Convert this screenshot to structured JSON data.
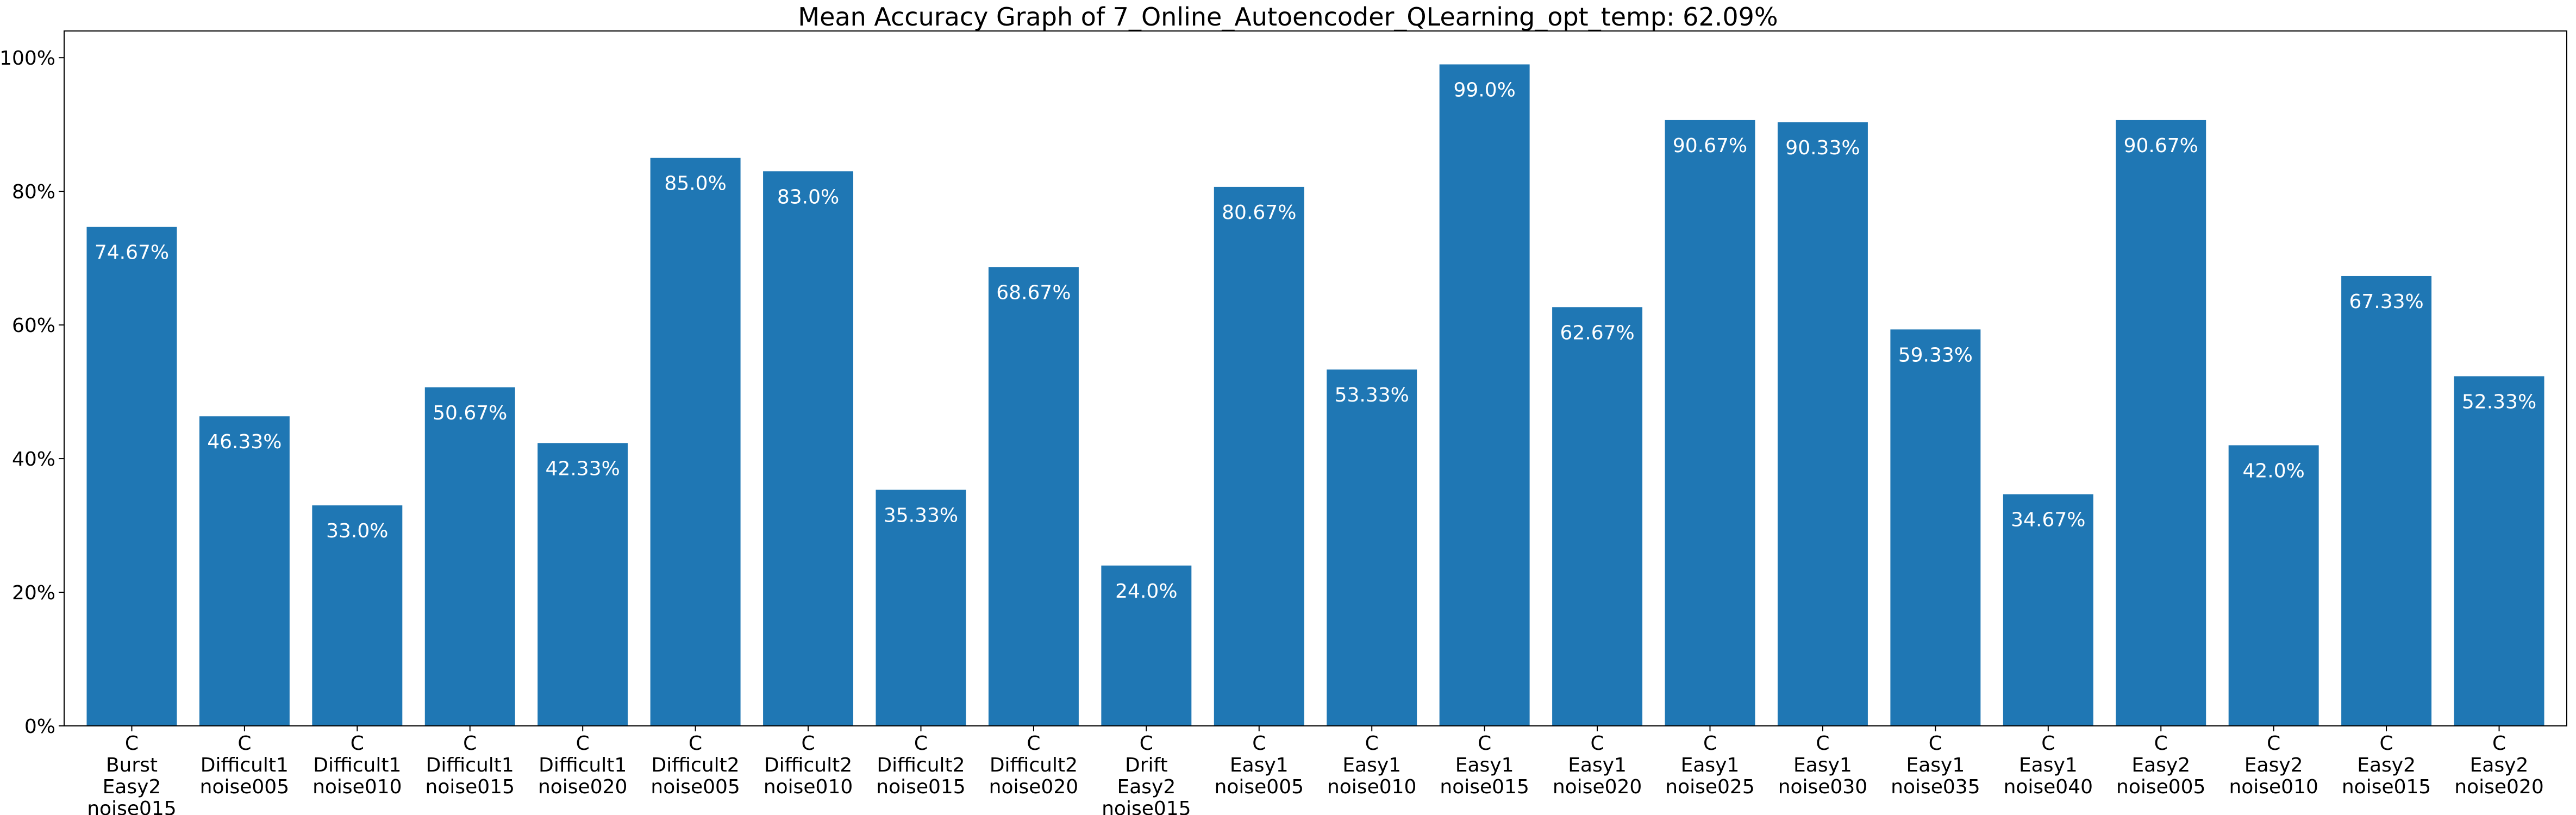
{
  "chart_data": {
    "type": "bar",
    "title": "Mean Accuracy Graph of 7_Online_Autoencoder_QLearning_opt_temp: 62.09%",
    "xlabel": "",
    "ylabel": "",
    "ylim": [
      0,
      104
    ],
    "grid": false,
    "bar_color": "#1f77b4",
    "label_color": "#ffffff",
    "yticks": [
      0,
      20,
      40,
      60,
      80,
      100
    ],
    "ytick_labels": [
      "0%",
      "20%",
      "40%",
      "60%",
      "80%",
      "100%"
    ],
    "categories": [
      "C\nBurst\nEasy2\nnoise015",
      "C\nDifficult1\nnoise005",
      "C\nDifficult1\nnoise010",
      "C\nDifficult1\nnoise015",
      "C\nDifficult1\nnoise020",
      "C\nDifficult2\nnoise005",
      "C\nDifficult2\nnoise010",
      "C\nDifficult2\nnoise015",
      "C\nDifficult2\nnoise020",
      "C\nDrift\nEasy2\nnoise015",
      "C\nEasy1\nnoise005",
      "C\nEasy1\nnoise010",
      "C\nEasy1\nnoise015",
      "C\nEasy1\nnoise020",
      "C\nEasy1\nnoise025",
      "C\nEasy1\nnoise030",
      "C\nEasy1\nnoise035",
      "C\nEasy1\nnoise040",
      "C\nEasy2\nnoise005",
      "C\nEasy2\nnoise010",
      "C\nEasy2\nnoise015",
      "C\nEasy2\nnoise020"
    ],
    "values": [
      74.67,
      46.33,
      33.0,
      50.67,
      42.33,
      85.0,
      83.0,
      35.33,
      68.67,
      24.0,
      80.67,
      53.33,
      99.0,
      62.67,
      90.67,
      90.33,
      59.33,
      34.67,
      90.67,
      42.0,
      67.33,
      52.33
    ],
    "data_labels": [
      "74.67%",
      "46.33%",
      "33.0%",
      "50.67%",
      "42.33%",
      "85.0%",
      "83.0%",
      "35.33%",
      "68.67%",
      "24.0%",
      "80.67%",
      "53.33%",
      "99.0%",
      "62.67%",
      "90.67%",
      "90.33%",
      "59.33%",
      "34.67%",
      "90.67%",
      "42.0%",
      "67.33%",
      "52.33%"
    ]
  }
}
